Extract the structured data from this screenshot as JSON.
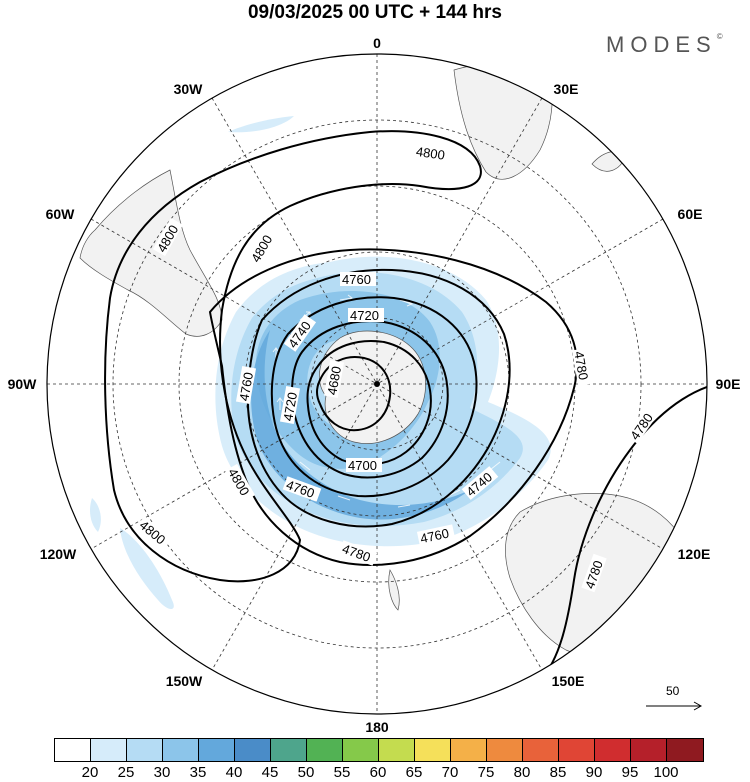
{
  "title": "09/03/2025  00 UTC  + 144 hrs",
  "logo": "MODES",
  "logo_mark": "©",
  "longitude_labels": {
    "lon0": "0",
    "lon30e": "30E",
    "lon60e": "60E",
    "lon90e": "90E",
    "lon120e": "120E",
    "lon150e": "150E",
    "lon180": "180",
    "lon150w": "150W",
    "lon120w": "120W",
    "lon90w": "90W",
    "lon60w": "60W",
    "lon30w": "30W"
  },
  "contour_labels": {
    "c4800_a": "4800",
    "c4800_b": "4800",
    "c4800_c": "4800",
    "c4800_d": "4800",
    "c4800_e": "4800",
    "c4780_a": "4780",
    "c4780_b": "4780",
    "c4780_c": "4780",
    "c4780_d": "4780",
    "c4760_a": "4760",
    "c4760_b": "4760",
    "c4760_c": "4760",
    "c4760_d": "4760",
    "c4740_a": "4740",
    "c4740_b": "4740",
    "c4720_a": "4720",
    "c4720_b": "4720",
    "c4700_a": "4700",
    "c4680_a": "4680"
  },
  "wind_reference": "50",
  "colorbar": {
    "colors": [
      "#ffffff",
      "#d6ecfa",
      "#b5dcf4",
      "#8cc5ea",
      "#63a8dc",
      "#4a8cc8",
      "#4ea58c",
      "#52b254",
      "#85c94a",
      "#c4dc4f",
      "#f5e05a",
      "#f4b048",
      "#ee8a3e",
      "#e8623a",
      "#e04535",
      "#d02d2f",
      "#b5202a",
      "#8f1a20"
    ],
    "labels": [
      "20",
      "25",
      "30",
      "35",
      "40",
      "45",
      "50",
      "55",
      "60",
      "65",
      "70",
      "75",
      "80",
      "85",
      "90",
      "95",
      "100"
    ]
  }
}
